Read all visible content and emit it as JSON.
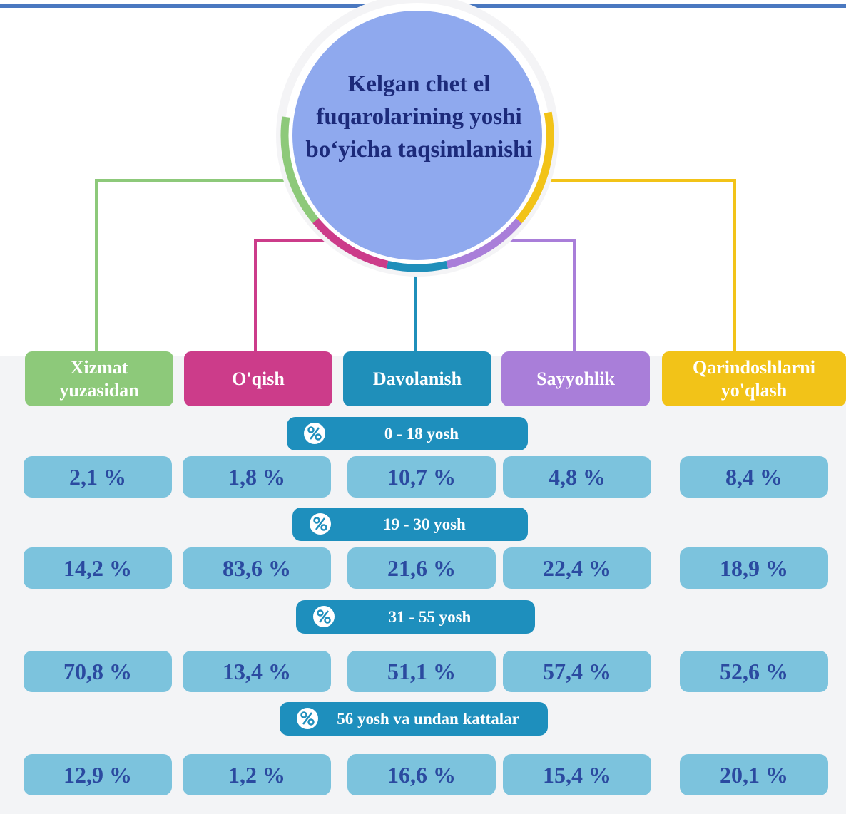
{
  "title": "Kelgan chet el fuqarolarining yoshi bo‘yicha taqsimlanishi",
  "categories": [
    {
      "name": "Xizmat yuzasidan",
      "color": "#8dc97a"
    },
    {
      "name": "O'qish",
      "color": "#cc3c8a"
    },
    {
      "name": "Davolanish",
      "color": "#1f8fba"
    },
    {
      "name": "Sayyohlik",
      "color": "#a97ed9"
    },
    {
      "name": "Qarindoshlarni yo'qlash",
      "color": "#f2c318"
    }
  ],
  "groups": [
    {
      "label": "0 - 18 yosh",
      "values": [
        "2,1 %",
        "1,8 %",
        "10,7 %",
        "4,8 %",
        "8,4 %"
      ]
    },
    {
      "label": "19 - 30 yosh",
      "values": [
        "14,2 %",
        "83,6 %",
        "21,6 %",
        "22,4 %",
        "18,9 %"
      ]
    },
    {
      "label": "31 - 55 yosh",
      "values": [
        "70,8 %",
        "13,4 %",
        "51,1 %",
        "57,4 %",
        "52,6 %"
      ]
    },
    {
      "label": "56 yosh va undan kattalar",
      "values": [
        "12,9 %",
        "1,2 %",
        "16,6 %",
        "15,4 %",
        "20,1 %"
      ]
    }
  ]
}
